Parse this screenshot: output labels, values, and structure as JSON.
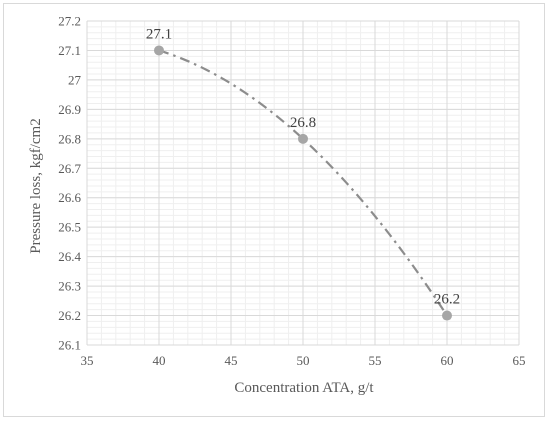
{
  "chart_data": {
    "type": "scatter",
    "title": "",
    "xlabel": "Concentration ATA, g/t",
    "ylabel": "Pressure loss, kgf/cm2",
    "xlim": [
      35,
      65
    ],
    "ylim": [
      26.1,
      27.2
    ],
    "xticks": [
      "35",
      "40",
      "45",
      "50",
      "55",
      "60",
      "65"
    ],
    "yticks": [
      "26.1",
      "26.2",
      "26.3",
      "26.4",
      "26.5",
      "26.6",
      "26.7",
      "26.8",
      "26.9",
      "27",
      "27.1",
      "27.2"
    ],
    "grid": true,
    "minor_grid": true,
    "legend": "none",
    "trendline": "dash-dot polynomial",
    "series": [
      {
        "x": [
          40,
          50,
          60
        ],
        "y": [
          27.1,
          26.8,
          26.2
        ],
        "labels": [
          "27.1",
          "26.8",
          "26.2"
        ],
        "color": "#a6a6a6"
      }
    ]
  }
}
